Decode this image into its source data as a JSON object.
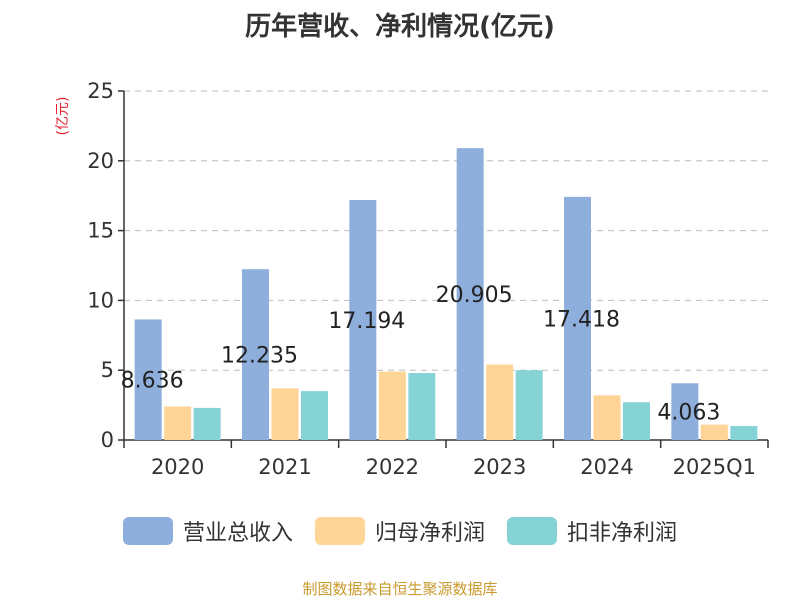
{
  "colors": {
    "revenue": "#8eaedc",
    "net_profit": "#fed597",
    "deducted_profit": "#86d3d6",
    "axis": "#333333",
    "grid": "#bdbdbd",
    "unit_label": "#e5232f",
    "source": "#c99a2e"
  },
  "chart_data": {
    "type": "bar",
    "title": "历年营收、净利情况(亿元)",
    "ylabel": "(亿元)",
    "xlabel": "",
    "ylim": [
      0,
      25
    ],
    "yticks": [
      0,
      5,
      10,
      15,
      20,
      25
    ],
    "grid": true,
    "legend_position": "bottom",
    "categories": [
      "2020",
      "2021",
      "2022",
      "2023",
      "2024",
      "2025Q1"
    ],
    "series": [
      {
        "name": "营业总收入",
        "values": [
          8.636,
          12.235,
          17.194,
          20.905,
          17.418,
          4.063
        ],
        "labels": [
          "8.636",
          "12.235",
          "17.194",
          "20.905",
          "17.418",
          "4.063"
        ]
      },
      {
        "name": "归母净利润",
        "values": [
          2.4,
          3.7,
          4.9,
          5.4,
          3.2,
          1.1
        ]
      },
      {
        "name": "扣非净利润",
        "values": [
          2.3,
          3.5,
          4.8,
          5.0,
          2.7,
          1.0
        ]
      }
    ]
  },
  "source_note": "制图数据来自恒生聚源数据库"
}
